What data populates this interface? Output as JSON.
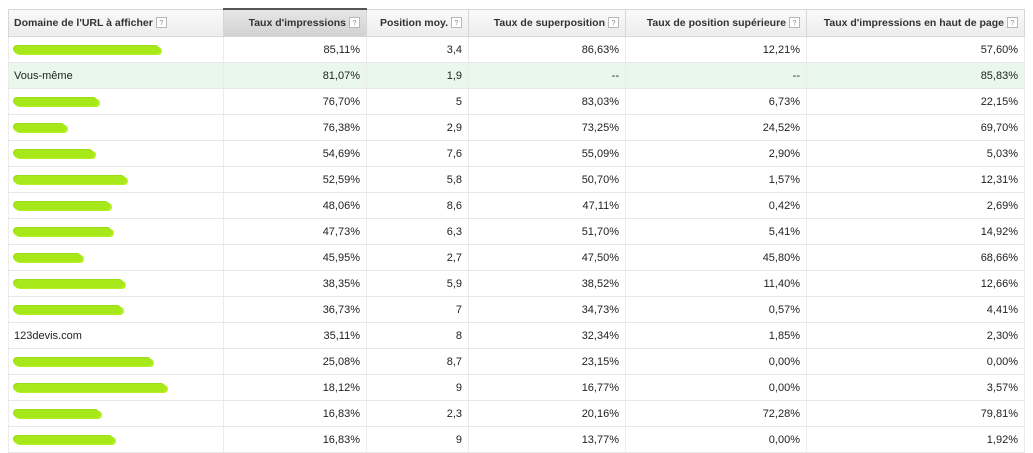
{
  "table": {
    "columns": [
      "Domaine de l'URL à afficher",
      "Taux d'impressions",
      "Position moy.",
      "Taux de superposition",
      "Taux de position supérieure",
      "Taux d'impressions en haut de page"
    ],
    "help_glyph": "?",
    "sorted_column": "Taux d'impressions",
    "rows": [
      {
        "domain": "",
        "redacted": true,
        "impression_share": "85,11%",
        "avg_position": "3,4",
        "overlap_rate": "86,63%",
        "position_above_rate": "12,21%",
        "top_of_page_rate": "57,60%"
      },
      {
        "domain": "Vous-même",
        "redacted": false,
        "highlight": true,
        "impression_share": "81,07%",
        "avg_position": "1,9",
        "overlap_rate": "--",
        "position_above_rate": "--",
        "top_of_page_rate": "85,83%"
      },
      {
        "domain": "",
        "redacted": true,
        "impression_share": "76,70%",
        "avg_position": "5",
        "overlap_rate": "83,03%",
        "position_above_rate": "6,73%",
        "top_of_page_rate": "22,15%"
      },
      {
        "domain": "",
        "redacted": true,
        "impression_share": "76,38%",
        "avg_position": "2,9",
        "overlap_rate": "73,25%",
        "position_above_rate": "24,52%",
        "top_of_page_rate": "69,70%"
      },
      {
        "domain": "",
        "redacted": true,
        "impression_share": "54,69%",
        "avg_position": "7,6",
        "overlap_rate": "55,09%",
        "position_above_rate": "2,90%",
        "top_of_page_rate": "5,03%"
      },
      {
        "domain": "",
        "redacted": true,
        "impression_share": "52,59%",
        "avg_position": "5,8",
        "overlap_rate": "50,70%",
        "position_above_rate": "1,57%",
        "top_of_page_rate": "12,31%"
      },
      {
        "domain": "",
        "redacted": true,
        "impression_share": "48,06%",
        "avg_position": "8,6",
        "overlap_rate": "47,11%",
        "position_above_rate": "0,42%",
        "top_of_page_rate": "2,69%"
      },
      {
        "domain": "",
        "redacted": true,
        "impression_share": "47,73%",
        "avg_position": "6,3",
        "overlap_rate": "51,70%",
        "position_above_rate": "5,41%",
        "top_of_page_rate": "14,92%"
      },
      {
        "domain": "",
        "redacted": true,
        "impression_share": "45,95%",
        "avg_position": "2,7",
        "overlap_rate": "47,50%",
        "position_above_rate": "45,80%",
        "top_of_page_rate": "68,66%"
      },
      {
        "domain": "",
        "redacted": true,
        "impression_share": "38,35%",
        "avg_position": "5,9",
        "overlap_rate": "38,52%",
        "position_above_rate": "11,40%",
        "top_of_page_rate": "12,66%"
      },
      {
        "domain": "",
        "redacted": true,
        "impression_share": "36,73%",
        "avg_position": "7",
        "overlap_rate": "34,73%",
        "position_above_rate": "0,57%",
        "top_of_page_rate": "4,41%"
      },
      {
        "domain": "123devis.com",
        "redacted": false,
        "impression_share": "35,11%",
        "avg_position": "8",
        "overlap_rate": "32,34%",
        "position_above_rate": "1,85%",
        "top_of_page_rate": "2,30%"
      },
      {
        "domain": "",
        "redacted": true,
        "impression_share": "25,08%",
        "avg_position": "8,7",
        "overlap_rate": "23,15%",
        "position_above_rate": "0,00%",
        "top_of_page_rate": "0,00%"
      },
      {
        "domain": "",
        "redacted": true,
        "impression_share": "18,12%",
        "avg_position": "9",
        "overlap_rate": "16,77%",
        "position_above_rate": "0,00%",
        "top_of_page_rate": "3,57%"
      },
      {
        "domain": "",
        "redacted": true,
        "impression_share": "16,83%",
        "avg_position": "2,3",
        "overlap_rate": "20,16%",
        "position_above_rate": "72,28%",
        "top_of_page_rate": "79,81%"
      },
      {
        "domain": "",
        "redacted": true,
        "impression_share": "16,83%",
        "avg_position": "9",
        "overlap_rate": "13,77%",
        "position_above_rate": "0,00%",
        "top_of_page_rate": "1,92%"
      }
    ]
  },
  "colors": {
    "redaction_marker": "#a6e81a",
    "self_row_highlight": "#e9f8ea",
    "sorted_header": "#d8d8d8"
  }
}
